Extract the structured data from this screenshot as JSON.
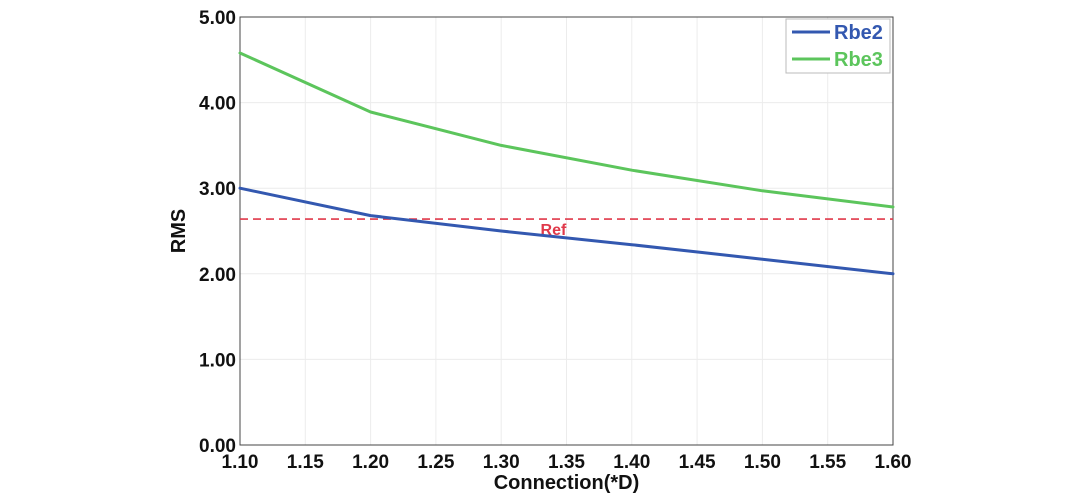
{
  "chart_data": {
    "type": "line",
    "xlabel": "Connection(*D)",
    "ylabel": "RMS",
    "x": [
      1.1,
      1.2,
      1.3,
      1.4,
      1.5,
      1.6
    ],
    "x_ticks": [
      "1.10",
      "1.15",
      "1.20",
      "1.25",
      "1.30",
      "1.35",
      "1.40",
      "1.45",
      "1.50",
      "1.55",
      "1.60"
    ],
    "y_ticks": [
      "0.00",
      "1.00",
      "2.00",
      "3.00",
      "4.00",
      "5.00"
    ],
    "xlim": [
      1.1,
      1.6
    ],
    "ylim": [
      0,
      5
    ],
    "grid": true,
    "legend_position": "top-right",
    "series": [
      {
        "name": "Rbe2",
        "color": "#3358b0",
        "values": [
          3.0,
          2.68,
          2.5,
          2.34,
          2.17,
          2.0
        ]
      },
      {
        "name": "Rbe3",
        "color": "#5cc55c",
        "values": [
          4.58,
          3.89,
          3.5,
          3.21,
          2.97,
          2.78
        ]
      }
    ],
    "reference": {
      "label": "Ref",
      "value": 2.64,
      "color": "#e0394a"
    }
  }
}
